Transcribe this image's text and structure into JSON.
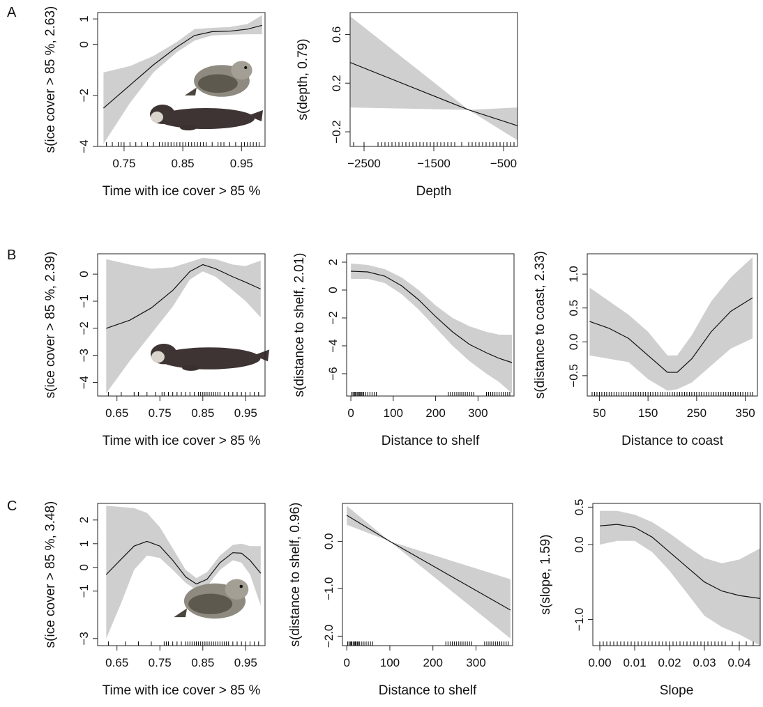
{
  "colors": {
    "band": "#cfcfcf",
    "curve": "#111111",
    "rug": "#000000",
    "frame": "#222222"
  },
  "panel_letters": [
    "A",
    "B",
    "C"
  ],
  "chart_data": [
    {
      "type": "line",
      "row_letter": "A",
      "xlabel": "Time with ice cover > 85 %",
      "ylabel": "s(ice cover > 85 %, 2.63)",
      "xlim": [
        0.705,
        0.99
      ],
      "ylim": [
        -4,
        1.25
      ],
      "xticks": [
        0.75,
        0.85,
        0.95
      ],
      "xtick_labels": [
        "0.75",
        "0.85",
        "0.95"
      ],
      "yticks": [
        -4,
        -2,
        0,
        1
      ],
      "ytick_labels": [
        "−4",
        "−2",
        "0",
        "1"
      ],
      "series": [
        {
          "x": [
            0.715,
            0.76,
            0.8,
            0.84,
            0.87,
            0.9,
            0.93,
            0.96,
            0.985
          ],
          "y": [
            -2.5,
            -1.6,
            -0.8,
            -0.1,
            0.35,
            0.5,
            0.52,
            0.6,
            0.75
          ],
          "lower": [
            -3.9,
            -2.3,
            -1.1,
            -0.3,
            0.15,
            0.35,
            0.38,
            0.4,
            0.4
          ],
          "upper": [
            -1.1,
            -0.85,
            -0.45,
            0.1,
            0.6,
            0.65,
            0.68,
            0.8,
            1.15
          ]
        }
      ],
      "rug": [
        0.72,
        0.73,
        0.74,
        0.745,
        0.75,
        0.76,
        0.77,
        0.78,
        0.79,
        0.8,
        0.81,
        0.815,
        0.82,
        0.825,
        0.83,
        0.835,
        0.84,
        0.845,
        0.85,
        0.855,
        0.86,
        0.865,
        0.87,
        0.875,
        0.88,
        0.885,
        0.89,
        0.9,
        0.91,
        0.915,
        0.92,
        0.93,
        0.94,
        0.95,
        0.955,
        0.96,
        0.965,
        0.97,
        0.975,
        0.98
      ],
      "has_photo": true
    },
    {
      "type": "line",
      "row_letter": "",
      "xlabel": "Depth",
      "ylabel": "s(depth, 0.79)",
      "xlim": [
        -2700,
        -300
      ],
      "ylim": [
        -0.32,
        0.78
      ],
      "xticks": [
        -2500,
        -1500,
        -500
      ],
      "xtick_labels": [
        "−2500",
        "−1500",
        "−500"
      ],
      "yticks": [
        -0.2,
        0.2,
        0.6
      ],
      "ytick_labels": [
        "−0.2",
        "0.2",
        "0.6"
      ],
      "series": [
        {
          "x": [
            -2700,
            -1000,
            -300
          ],
          "y": [
            0.37,
            -0.02,
            -0.15
          ],
          "lower": [
            0.0,
            -0.02,
            -0.27
          ],
          "upper": [
            0.75,
            -0.02,
            0.0
          ]
        }
      ],
      "rug": [
        -2650,
        -2500,
        -2300,
        -2250,
        -2200,
        -2150,
        -2100,
        -2050,
        -2000,
        -1950,
        -1900,
        -1850,
        -1800,
        -1750,
        -1700,
        -1650,
        -1600,
        -1550,
        -1500,
        -1450,
        -1400,
        -1350,
        -1300,
        -1250,
        -1200,
        -1100,
        -1000,
        -950,
        -900,
        -850,
        -800,
        -750,
        -700,
        -650,
        -600,
        -550,
        -500,
        -450,
        -400,
        -350
      ],
      "has_photo": false
    },
    {
      "type": "line",
      "row_letter": "B",
      "xlabel": "Time with ice cover > 85 %",
      "ylabel": "s(ice cover > 85 %, 2.39)",
      "xlim": [
        0.605,
        0.995
      ],
      "ylim": [
        -4.5,
        0.75
      ],
      "xticks": [
        0.65,
        0.75,
        0.85,
        0.95
      ],
      "xtick_labels": [
        "0.65",
        "0.75",
        "0.85",
        "0.95"
      ],
      "yticks": [
        -4,
        -3,
        -2,
        -1,
        0
      ],
      "ytick_labels": [
        "−4",
        "−3",
        "−2",
        "−1",
        "0"
      ],
      "series": [
        {
          "x": [
            0.625,
            0.68,
            0.73,
            0.78,
            0.82,
            0.85,
            0.88,
            0.92,
            0.95,
            0.985
          ],
          "y": [
            -2.0,
            -1.7,
            -1.25,
            -0.6,
            0.1,
            0.35,
            0.2,
            -0.1,
            -0.3,
            -0.55
          ],
          "lower": [
            -4.4,
            -3.2,
            -2.2,
            -1.2,
            -0.2,
            0.1,
            -0.1,
            -0.6,
            -1.0,
            -1.6
          ],
          "upper": [
            0.55,
            0.35,
            0.2,
            0.25,
            0.45,
            0.6,
            0.55,
            0.35,
            0.3,
            0.5
          ]
        }
      ],
      "rug": [
        0.63,
        0.66,
        0.69,
        0.7,
        0.72,
        0.74,
        0.755,
        0.76,
        0.77,
        0.78,
        0.79,
        0.8,
        0.81,
        0.82,
        0.83,
        0.84,
        0.845,
        0.85,
        0.855,
        0.86,
        0.865,
        0.87,
        0.875,
        0.88,
        0.885,
        0.89,
        0.9,
        0.91,
        0.92,
        0.93,
        0.94,
        0.95,
        0.96,
        0.97,
        0.98
      ],
      "has_photo": true
    },
    {
      "type": "line",
      "row_letter": "",
      "xlabel": "Distance to shelf",
      "ylabel": "s(distance to shelf, 2.01)",
      "xlim": [
        -10,
        385
      ],
      "ylim": [
        -7.6,
        2.6
      ],
      "xticks": [
        0,
        100,
        200,
        300
      ],
      "xtick_labels": [
        "0",
        "100",
        "200",
        "300"
      ],
      "yticks": [
        -6,
        -4,
        -2,
        0,
        2
      ],
      "ytick_labels": [
        "−6",
        "−4",
        "−2",
        "0",
        "2"
      ],
      "series": [
        {
          "x": [
            0,
            40,
            80,
            120,
            160,
            200,
            240,
            280,
            320,
            350,
            380
          ],
          "y": [
            1.35,
            1.3,
            1.0,
            0.3,
            -0.7,
            -1.9,
            -3.0,
            -3.9,
            -4.5,
            -4.9,
            -5.2
          ],
          "lower": [
            0.8,
            0.8,
            0.5,
            -0.3,
            -1.4,
            -2.7,
            -4.0,
            -5.1,
            -6.0,
            -6.6,
            -7.4
          ],
          "upper": [
            1.9,
            1.8,
            1.5,
            0.9,
            0.0,
            -1.1,
            -2.0,
            -2.6,
            -3.0,
            -3.2,
            -3.2
          ]
        }
      ],
      "rug": [
        2,
        5,
        8,
        10,
        12,
        15,
        18,
        20,
        22,
        25,
        28,
        30,
        35,
        40,
        45,
        50,
        55,
        60,
        230,
        235,
        240,
        245,
        250,
        255,
        260,
        265,
        270,
        275,
        280,
        285,
        290,
        320,
        325,
        330,
        335,
        340,
        345,
        350,
        355,
        360,
        365,
        370,
        375
      ],
      "has_photo": false
    },
    {
      "type": "line",
      "row_letter": "",
      "xlabel": "Distance to coast",
      "ylabel": "s(distance to coast, 2.33)",
      "xlim": [
        25,
        375
      ],
      "ylim": [
        -0.8,
        1.3
      ],
      "xticks": [
        50,
        150,
        250,
        350
      ],
      "xtick_labels": [
        "50",
        "150",
        "250",
        "350"
      ],
      "yticks": [
        -0.5,
        0,
        0.5,
        1
      ],
      "ytick_labels": [
        "−0.5",
        "0.0",
        "0.5",
        "1.0"
      ],
      "series": [
        {
          "x": [
            30,
            70,
            110,
            150,
            190,
            210,
            240,
            280,
            320,
            365
          ],
          "y": [
            0.3,
            0.2,
            0.05,
            -0.2,
            -0.45,
            -0.45,
            -0.25,
            0.15,
            0.45,
            0.65
          ],
          "lower": [
            -0.2,
            -0.25,
            -0.3,
            -0.55,
            -0.72,
            -0.7,
            -0.6,
            -0.35,
            -0.1,
            0.05
          ],
          "upper": [
            0.8,
            0.6,
            0.4,
            0.15,
            -0.2,
            -0.2,
            0.1,
            0.6,
            0.95,
            1.25
          ]
        }
      ],
      "rug": [
        35,
        40,
        45,
        50,
        55,
        60,
        65,
        70,
        75,
        80,
        85,
        90,
        95,
        100,
        105,
        110,
        115,
        120,
        125,
        130,
        135,
        140,
        145,
        150,
        155,
        160,
        165,
        170,
        175,
        180,
        185,
        190,
        195,
        200,
        205,
        210,
        215,
        220,
        225,
        230,
        235,
        240,
        245,
        250,
        255,
        260,
        265,
        270,
        275,
        280,
        285,
        290,
        295,
        300,
        305,
        310,
        315,
        320,
        325,
        330,
        335,
        340,
        345,
        350,
        355,
        360,
        365
      ],
      "has_photo": false
    },
    {
      "type": "line",
      "row_letter": "C",
      "xlabel": "Time with ice cover > 85 %",
      "ylabel": "s(ice cover > 85 %, 3.48)",
      "xlim": [
        0.605,
        0.995
      ],
      "ylim": [
        -3.3,
        2.7
      ],
      "xticks": [
        0.65,
        0.75,
        0.85,
        0.95
      ],
      "xtick_labels": [
        "0.65",
        "0.75",
        "0.85",
        "0.95"
      ],
      "yticks": [
        -3,
        -1,
        0,
        1,
        2
      ],
      "ytick_labels": [
        "−3",
        "−1",
        "0",
        "1",
        "2"
      ],
      "series": [
        {
          "x": [
            0.625,
            0.66,
            0.69,
            0.72,
            0.75,
            0.78,
            0.81,
            0.835,
            0.86,
            0.89,
            0.92,
            0.94,
            0.96,
            0.985
          ],
          "y": [
            -0.3,
            0.35,
            0.9,
            1.1,
            0.9,
            0.3,
            -0.4,
            -0.7,
            -0.5,
            0.2,
            0.62,
            0.6,
            0.3,
            -0.25
          ],
          "lower": [
            -3.0,
            -1.5,
            -0.1,
            0.5,
            0.4,
            -0.1,
            -0.65,
            -0.95,
            -0.8,
            -0.1,
            0.3,
            0.2,
            -0.3,
            -1.6
          ],
          "upper": [
            2.6,
            2.55,
            2.5,
            2.3,
            1.7,
            0.8,
            -0.1,
            -0.45,
            -0.2,
            0.5,
            0.95,
            1.0,
            0.9,
            0.9
          ]
        }
      ],
      "rug": [
        0.63,
        0.67,
        0.7,
        0.73,
        0.76,
        0.765,
        0.77,
        0.78,
        0.79,
        0.8,
        0.81,
        0.815,
        0.82,
        0.825,
        0.83,
        0.835,
        0.84,
        0.845,
        0.85,
        0.855,
        0.86,
        0.865,
        0.87,
        0.875,
        0.88,
        0.885,
        0.89,
        0.895,
        0.9,
        0.905,
        0.91,
        0.92,
        0.93,
        0.94,
        0.95,
        0.96,
        0.97,
        0.98
      ],
      "has_photo": true
    },
    {
      "type": "line",
      "row_letter": "",
      "xlabel": "Distance to shelf",
      "ylabel": "s(distance to shelf, 0.96)",
      "xlim": [
        -10,
        385
      ],
      "ylim": [
        -2.2,
        0.8
      ],
      "xticks": [
        0,
        100,
        200,
        300
      ],
      "xtick_labels": [
        "0",
        "100",
        "200",
        "300"
      ],
      "yticks": [
        -2,
        -1,
        0
      ],
      "ytick_labels": [
        "−2.0",
        "−1.0",
        "0.0"
      ],
      "series": [
        {
          "x": [
            0,
            100,
            380
          ],
          "y": [
            0.55,
            0.0,
            -1.45
          ],
          "lower": [
            0.35,
            0.0,
            -2.05
          ],
          "upper": [
            0.75,
            0.0,
            -0.8
          ]
        }
      ],
      "rug": [
        2,
        5,
        8,
        10,
        12,
        15,
        18,
        20,
        22,
        25,
        28,
        30,
        35,
        40,
        45,
        50,
        55,
        60,
        230,
        235,
        240,
        245,
        250,
        255,
        260,
        265,
        270,
        275,
        280,
        285,
        290,
        320,
        325,
        330,
        335,
        340,
        345,
        350,
        355,
        360,
        365,
        370,
        375
      ],
      "has_photo": false
    },
    {
      "type": "line",
      "row_letter": "",
      "xlabel": "Slope",
      "ylabel": "s(slope, 1.59)",
      "xlim": [
        -0.002,
        0.046
      ],
      "ylim": [
        -1.35,
        0.55
      ],
      "xticks": [
        0,
        0.01,
        0.02,
        0.03,
        0.04
      ],
      "xtick_labels": [
        "0.00",
        "0.01",
        "0.02",
        "0.03",
        "0.04"
      ],
      "yticks": [
        -1,
        0,
        0.5
      ],
      "ytick_labels": [
        "−1.0",
        "0.0",
        "0.5"
      ],
      "series": [
        {
          "x": [
            0.0,
            0.005,
            0.01,
            0.015,
            0.02,
            0.025,
            0.03,
            0.035,
            0.04,
            0.046
          ],
          "y": [
            0.25,
            0.27,
            0.23,
            0.1,
            -0.1,
            -0.3,
            -0.5,
            -0.62,
            -0.68,
            -0.72
          ],
          "lower": [
            0.0,
            0.05,
            0.05,
            -0.1,
            -0.35,
            -0.65,
            -0.95,
            -1.1,
            -1.2,
            -1.35
          ],
          "upper": [
            0.45,
            0.45,
            0.4,
            0.3,
            0.15,
            -0.02,
            -0.18,
            -0.25,
            -0.2,
            -0.05
          ]
        }
      ],
      "rug": [
        0.0,
        0.001,
        0.002,
        0.003,
        0.004,
        0.005,
        0.006,
        0.007,
        0.008,
        0.009,
        0.01,
        0.011,
        0.012,
        0.013,
        0.014,
        0.015,
        0.016,
        0.017,
        0.018,
        0.019,
        0.02,
        0.021,
        0.022,
        0.023,
        0.024,
        0.025,
        0.026,
        0.027,
        0.028,
        0.029,
        0.03,
        0.031,
        0.032,
        0.033,
        0.034,
        0.035,
        0.036,
        0.038,
        0.04,
        0.042,
        0.044
      ],
      "has_photo": false
    }
  ]
}
